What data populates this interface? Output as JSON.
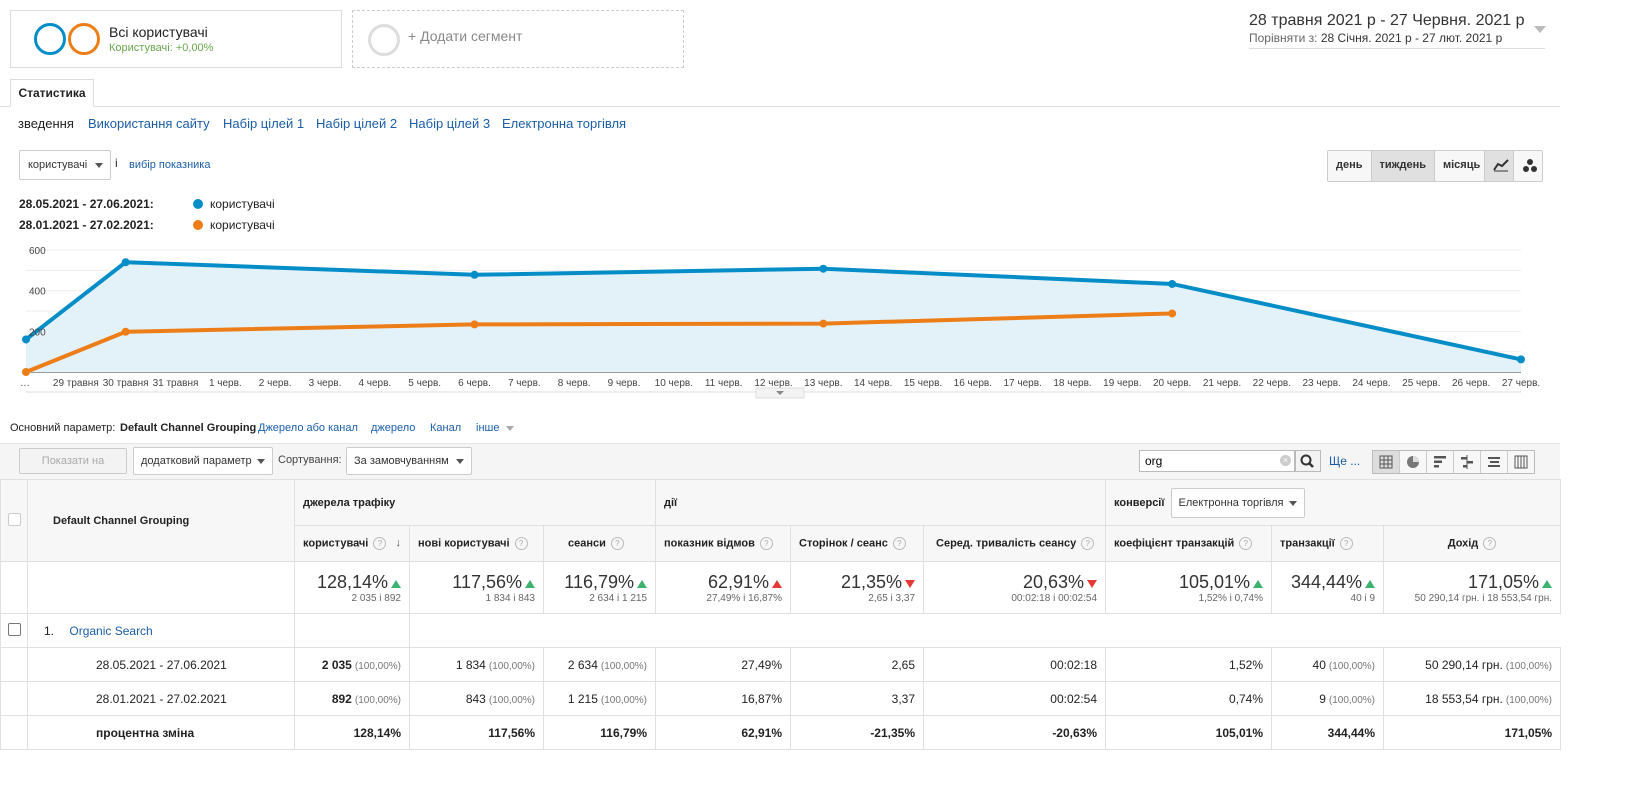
{
  "segments": {
    "all_users_title": "Всі користувачі",
    "all_users_sub": "Користувачі: +0,00%",
    "add_segment": "+ Додати сегмент"
  },
  "date_range": {
    "main": "28 травня 2021 р  -  27 Червня. 2021 р",
    "compare_label": "Порівняти з:",
    "compare": "28 Січня. 2021 р  -  27 лют. 2021 р"
  },
  "tabs": {
    "active": "Статистика"
  },
  "subnav": [
    "зведення",
    "Використання сайту",
    "Набір цілей 1",
    "Набір цілей 2",
    "Набір цілей 3",
    "Електронна торгівля"
  ],
  "metric_select": {
    "value": "користувачі",
    "info": "i",
    "choose": "вибір показника"
  },
  "period_buttons": [
    "день",
    "тиждень",
    "місяць"
  ],
  "legend": [
    {
      "date": "28.05.2021 - 27.06.2021:",
      "label": "користувачі",
      "color": "#058dc7"
    },
    {
      "date": "28.01.2021 - 27.02.2021:",
      "label": "користувачі",
      "color": "#ed7e17"
    }
  ],
  "chart_data": {
    "type": "line",
    "ylim": [
      0,
      600
    ],
    "yticks": [
      "600",
      "400",
      "200"
    ],
    "x_labels": [
      "…",
      "29 травня",
      "30 травня",
      "31 травня",
      "1 черв.",
      "2 черв.",
      "3 черв.",
      "4 черв.",
      "5 черв.",
      "6 черв.",
      "7 черв.",
      "8 черв.",
      "9 черв.",
      "10 черв.",
      "11 черв.",
      "12 черв.",
      "13 черв.",
      "14 черв.",
      "15 черв.",
      "16 черв.",
      "17 черв.",
      "18 черв.",
      "19 черв.",
      "20 черв.",
      "21 черв.",
      "22 черв.",
      "23 черв.",
      "24 черв.",
      "25 черв.",
      "26 черв.",
      "27 черв."
    ],
    "series": [
      {
        "name": "28.05.2021 - 27.06.2021",
        "color": "#058dc7",
        "points": [
          [
            "28 травня",
            160
          ],
          [
            "30 травня",
            540
          ],
          [
            "6 черв.",
            478
          ],
          [
            "13 черв.",
            508
          ],
          [
            "20 черв.",
            433
          ],
          [
            "27 черв.",
            62
          ]
        ]
      },
      {
        "name": "28.01.2021 - 27.02.2021",
        "color": "#ed7e17",
        "points": [
          [
            "28 травня",
            0
          ],
          [
            "30 травня",
            198
          ],
          [
            "6 черв.",
            234
          ],
          [
            "13 черв.",
            238
          ],
          [
            "20 черв.",
            288
          ]
        ]
      }
    ]
  },
  "dimensions": {
    "label": "Основний параметр:",
    "active": "Default Channel Grouping",
    "others": [
      "Джерело або канал",
      "джерело",
      "Канал",
      "інше"
    ]
  },
  "toolbar": {
    "plot_rows": "Показати на діаграмі",
    "secondary": "додатковий параметр",
    "sort_label": "Сортування:",
    "sort_value": "За замовчуванням",
    "search_value": "org",
    "more": "Ще ..."
  },
  "table": {
    "dim_header": "Default Channel Grouping",
    "groups": {
      "acquisition": "джерела трафіку",
      "behavior": "дії",
      "conversions": "конверсії",
      "conv_select": "Електронна торгівля"
    },
    "columns": [
      "користувачі",
      "нові користувачі",
      "сеанси",
      "показник відмов",
      "Сторінок / сеанс",
      "Серед. тривалість сеансу",
      "коефіцієнт транзакцій",
      "транзакції",
      "Дохід"
    ],
    "totals": [
      {
        "big": "128,14%",
        "dir": "up",
        "small": "2 035 і 892"
      },
      {
        "big": "117,56%",
        "dir": "up",
        "small": "1 834 і 843"
      },
      {
        "big": "116,79%",
        "dir": "up",
        "small": "2 634 і 1 215"
      },
      {
        "big": "62,91%",
        "dir": "up-red",
        "small": "27,49% і 16,87%"
      },
      {
        "big": "21,35%",
        "dir": "down",
        "small": "2,65 і 3,37"
      },
      {
        "big": "20,63%",
        "dir": "down",
        "small": "00:02:18 і 00:02:54"
      },
      {
        "big": "105,01%",
        "dir": "up",
        "small": "1,52% і 0,74%"
      },
      {
        "big": "344,44%",
        "dir": "up",
        "small": "40 і 9"
      },
      {
        "big": "171,05%",
        "dir": "up",
        "small": "50 290,14 грн. і 18 553,54 грн."
      }
    ],
    "row_index": "1.",
    "row_name": "Organic Search",
    "rows": [
      {
        "label": "28.05.2021 - 27.06.2021",
        "cells": [
          [
            "2 035",
            "(100,00%)"
          ],
          [
            "1 834",
            "(100,00%)"
          ],
          [
            "2 634",
            "(100,00%)"
          ],
          [
            "27,49%",
            ""
          ],
          [
            "2,65",
            ""
          ],
          [
            "00:02:18",
            ""
          ],
          [
            "1,52%",
            ""
          ],
          [
            "40",
            "(100,00%)"
          ],
          [
            "50 290,14 грн.",
            "(100,00%)"
          ]
        ]
      },
      {
        "label": "28.01.2021 - 27.02.2021",
        "cells": [
          [
            "892",
            "(100,00%)"
          ],
          [
            "843",
            "(100,00%)"
          ],
          [
            "1 215",
            "(100,00%)"
          ],
          [
            "16,87%",
            ""
          ],
          [
            "3,37",
            ""
          ],
          [
            "00:02:54",
            ""
          ],
          [
            "0,74%",
            ""
          ],
          [
            "9",
            "(100,00%)"
          ],
          [
            "18 553,54 грн.",
            "(100,00%)"
          ]
        ]
      },
      {
        "label": "процентна зміна",
        "cells": [
          [
            "128,14%",
            ""
          ],
          [
            "117,56%",
            ""
          ],
          [
            "116,79%",
            ""
          ],
          [
            "62,91%",
            ""
          ],
          [
            "-21,35%",
            ""
          ],
          [
            "-20,63%",
            ""
          ],
          [
            "105,01%",
            ""
          ],
          [
            "344,44%",
            ""
          ],
          [
            "171,05%",
            ""
          ]
        ]
      }
    ]
  }
}
